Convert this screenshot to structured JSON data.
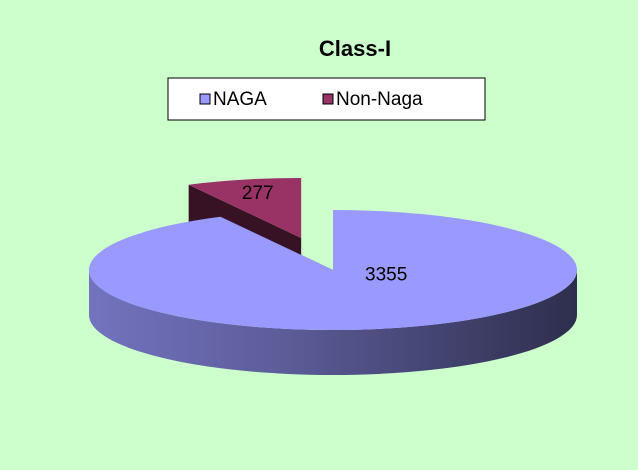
{
  "chart_data": {
    "type": "pie",
    "title": "Class-I",
    "categories": [
      "NAGA",
      "Non-Naga"
    ],
    "values": [
      3355,
      277
    ],
    "colors": [
      "#9999ff",
      "#993366"
    ],
    "legend": "top",
    "exploded": [
      false,
      true
    ]
  }
}
